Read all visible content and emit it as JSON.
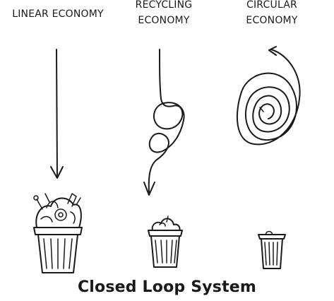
{
  "columns": [
    {
      "label_lines": [
        "LINEAR ECONOMY"
      ]
    },
    {
      "label_lines": [
        "RECYCLING",
        "ECONOMY"
      ]
    },
    {
      "label_lines": [
        "CIRCULAR",
        "ECONOMY"
      ]
    }
  ],
  "caption": "Closed Loop System",
  "colors": {
    "ink": "#1a1a1a",
    "background": "#ffffff"
  }
}
